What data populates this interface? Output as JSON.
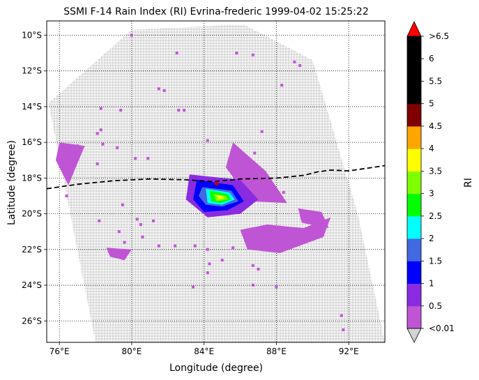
{
  "title": "SSMI F-14 Rain Index (RI) Evrina-frederic 1999-04-02 15:25:22",
  "xlabel": "Longitude (degree)",
  "ylabel": "Latitude (degree)",
  "colorbar": {
    "label": "RI",
    "tick_labels": [
      "<0.01",
      "0.5",
      "1",
      "1.5",
      "2",
      "2.5",
      "3",
      "3.5",
      "4",
      "4.5",
      "5",
      "5.5",
      "6",
      ">6.5"
    ],
    "colors": [
      "#bf55d4",
      "#8a2be2",
      "#0000ff",
      "#4169e1",
      "#00ffff",
      "#00ff00",
      "#7fff00",
      "#ffff00",
      "#ffa500",
      "#800000",
      "#000000",
      "#000000",
      "#000000"
    ],
    "under_color": "#d3d3d3",
    "over_color": "#ff0000"
  },
  "map": {
    "lon_range": [
      75.3,
      94.0
    ],
    "lat_range": [
      -27.2,
      -9.2
    ],
    "gridlines": "dotted",
    "x_ticks": [
      {
        "value": 76,
        "label": "76°E"
      },
      {
        "value": 80,
        "label": "80°E"
      },
      {
        "value": 84,
        "label": "84°E"
      },
      {
        "value": 88,
        "label": "88°E"
      },
      {
        "value": 92,
        "label": "92°E"
      }
    ],
    "y_ticks": [
      {
        "value": -10,
        "label": "10°S"
      },
      {
        "value": -12,
        "label": "12°S"
      },
      {
        "value": -14,
        "label": "14°S"
      },
      {
        "value": -16,
        "label": "16°S"
      },
      {
        "value": -18,
        "label": "18°S"
      },
      {
        "value": -20,
        "label": "20°S"
      },
      {
        "value": -22,
        "label": "22°S"
      },
      {
        "value": -24,
        "label": "24°S"
      },
      {
        "value": -26,
        "label": "26°S"
      }
    ],
    "swath_color": "#d3d3d3",
    "track_color": "#000000",
    "storm_center_color": "#cc0000"
  },
  "chart_data": {
    "type": "heatmap",
    "title": "SSMI F-14 Rain Index (RI) Evrina-frederic 1999-04-02 15:25:22",
    "xlabel": "Longitude (degree)",
    "ylabel": "Latitude (degree)",
    "xlim": [
      75.3,
      94.0
    ],
    "ylim": [
      -27.2,
      -9.2
    ],
    "swath_corners": [
      [
        75.4,
        -13.8
      ],
      [
        80.0,
        -9.7
      ],
      [
        86.2,
        -9.4
      ],
      [
        90.0,
        -11.4
      ],
      [
        92.5,
        -20.0
      ],
      [
        94.0,
        -27.2
      ],
      [
        78.0,
        -27.2
      ]
    ],
    "storm_track": [
      [
        75.3,
        -18.6
      ],
      [
        77.0,
        -18.35
      ],
      [
        79.0,
        -18.15
      ],
      [
        81.0,
        -18.05
      ],
      [
        83.0,
        -18.1
      ],
      [
        84.5,
        -18.2
      ],
      [
        86.0,
        -18.05
      ],
      [
        88.0,
        -18.0
      ],
      [
        89.5,
        -17.85
      ],
      [
        90.3,
        -17.65
      ],
      [
        91.0,
        -17.55
      ],
      [
        92.0,
        -17.6
      ],
      [
        93.0,
        -17.45
      ],
      [
        94.0,
        -17.3
      ]
    ],
    "storm_center": [
      84.7,
      -18.3
    ],
    "rain_cells": [
      {
        "ri_class": "<0.01",
        "points": [
          [
            80.0,
            -10.0
          ],
          [
            82.5,
            -11.0
          ],
          [
            85.8,
            -11.0
          ],
          [
            86.7,
            -11.1
          ],
          [
            89.0,
            -11.5
          ],
          [
            89.3,
            -11.7
          ],
          [
            81.5,
            -13.0
          ],
          [
            81.8,
            -13.1
          ],
          [
            88.3,
            -12.8
          ],
          [
            78.3,
            -14.1
          ],
          [
            79.4,
            -14.2
          ],
          [
            82.6,
            -14.2
          ],
          [
            82.9,
            -14.2
          ],
          [
            78.1,
            -15.5
          ],
          [
            78.3,
            -15.3
          ],
          [
            87.2,
            -15.4
          ],
          [
            84.2,
            -15.9
          ],
          [
            77.0,
            -16.2
          ],
          [
            78.4,
            -16.1
          ],
          [
            79.2,
            -16.3
          ],
          [
            86.8,
            -16.6
          ],
          [
            80.2,
            -16.9
          ],
          [
            80.9,
            -16.9
          ],
          [
            78.1,
            -17.2
          ],
          [
            88.4,
            -18.8
          ],
          [
            76.4,
            -19.0
          ],
          [
            79.5,
            -19.5
          ],
          [
            80.3,
            -20.3
          ],
          [
            80.5,
            -20.6
          ],
          [
            81.2,
            -20.4
          ],
          [
            78.2,
            -20.4
          ],
          [
            79.3,
            -21.0
          ],
          [
            79.6,
            -21.6
          ],
          [
            80.6,
            -21.3
          ],
          [
            81.5,
            -21.8
          ],
          [
            82.4,
            -21.8
          ],
          [
            83.5,
            -21.8
          ],
          [
            84.2,
            -22.0
          ],
          [
            85.6,
            -21.9
          ],
          [
            86.8,
            -21.5
          ],
          [
            85.0,
            -22.6
          ],
          [
            84.3,
            -22.8
          ],
          [
            86.7,
            -22.9
          ],
          [
            87.0,
            -23.1
          ],
          [
            84.2,
            -23.3
          ],
          [
            83.4,
            -24.1
          ],
          [
            86.7,
            -24.0
          ],
          [
            88.0,
            -24.1
          ],
          [
            91.6,
            -25.7
          ],
          [
            91.7,
            -26.5
          ]
        ]
      },
      {
        "ri_class": "<0.01",
        "region": [
          [
            76.0,
            -16.0
          ],
          [
            77.4,
            -16.2
          ],
          [
            76.5,
            -18.4
          ],
          [
            75.8,
            -17.0
          ]
        ]
      },
      {
        "ri_class": "<0.01",
        "region": [
          [
            85.6,
            -16.0
          ],
          [
            87.4,
            -17.6
          ],
          [
            88.6,
            -19.4
          ],
          [
            86.6,
            -19.3
          ],
          [
            85.2,
            -17.4
          ]
        ]
      },
      {
        "ri_class": "<0.01",
        "region": [
          [
            86.0,
            -20.9
          ],
          [
            87.5,
            -20.6
          ],
          [
            89.5,
            -20.8
          ],
          [
            91.0,
            -20.2
          ],
          [
            90.6,
            -21.3
          ],
          [
            88.2,
            -22.2
          ],
          [
            86.4,
            -22.0
          ]
        ]
      },
      {
        "ri_class": "<0.01",
        "region": [
          [
            89.2,
            -19.7
          ],
          [
            90.5,
            -19.9
          ],
          [
            90.9,
            -20.8
          ],
          [
            89.4,
            -20.5
          ]
        ]
      },
      {
        "ri_class": "<0.01",
        "region": [
          [
            78.6,
            -21.9
          ],
          [
            80.0,
            -22.0
          ],
          [
            79.6,
            -22.6
          ],
          [
            78.8,
            -22.4
          ]
        ]
      },
      {
        "ri_class": "0.5",
        "region": [
          [
            83.2,
            -17.8
          ],
          [
            86.0,
            -18.1
          ],
          [
            87.0,
            -19.2
          ],
          [
            86.0,
            -20.0
          ],
          [
            84.2,
            -20.2
          ],
          [
            83.0,
            -19.2
          ]
        ]
      },
      {
        "ri_class": "1",
        "region": [
          [
            83.6,
            -18.1
          ],
          [
            85.6,
            -18.4
          ],
          [
            86.2,
            -19.3
          ],
          [
            85.3,
            -19.8
          ],
          [
            84.0,
            -19.9
          ],
          [
            83.4,
            -19.2
          ]
        ]
      },
      {
        "ri_class": "1.5",
        "region": [
          [
            83.9,
            -18.5
          ],
          [
            85.5,
            -18.7
          ],
          [
            85.9,
            -19.3
          ],
          [
            85.0,
            -19.6
          ],
          [
            84.1,
            -19.5
          ],
          [
            83.7,
            -19.0
          ]
        ]
      },
      {
        "ri_class": "2",
        "region": [
          [
            84.1,
            -18.6
          ],
          [
            85.4,
            -18.8
          ],
          [
            85.7,
            -19.2
          ],
          [
            85.0,
            -19.5
          ],
          [
            84.2,
            -19.4
          ]
        ]
      },
      {
        "ri_class": "2.5",
        "region": [
          [
            84.3,
            -18.7
          ],
          [
            85.3,
            -18.9
          ],
          [
            85.5,
            -19.2
          ],
          [
            84.9,
            -19.4
          ],
          [
            84.4,
            -19.3
          ]
        ]
      },
      {
        "ri_class": "3",
        "region": [
          [
            84.5,
            -18.9
          ],
          [
            85.2,
            -19.0
          ],
          [
            85.3,
            -19.2
          ],
          [
            84.7,
            -19.3
          ]
        ]
      },
      {
        "ri_class": "3.5",
        "region": [
          [
            84.7,
            -18.95
          ],
          [
            85.0,
            -19.0
          ],
          [
            85.1,
            -19.15
          ],
          [
            84.8,
            -19.2
          ]
        ]
      }
    ]
  }
}
